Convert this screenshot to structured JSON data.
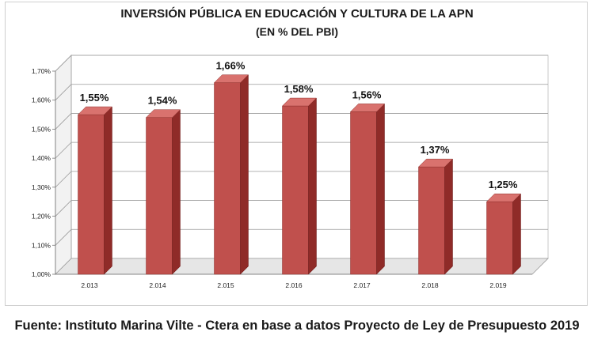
{
  "chart_data": {
    "type": "bar",
    "title": "INVERSIÓN PÚBLICA EN EDUCACIÓN Y CULTURA DE LA APN",
    "subtitle": "(EN % DEL PBI)",
    "categories": [
      "2.013",
      "2.014",
      "2.015",
      "2.016",
      "2.017",
      "2.018",
      "2.019"
    ],
    "values": [
      1.55,
      1.54,
      1.66,
      1.58,
      1.56,
      1.37,
      1.25
    ],
    "data_labels": [
      "1,55%",
      "1,54%",
      "1,66%",
      "1,58%",
      "1,56%",
      "1,37%",
      "1,25%"
    ],
    "yticks": [
      "1,00%",
      "1,10%",
      "1,20%",
      "1,30%",
      "1,40%",
      "1,50%",
      "1,60%",
      "1,70%"
    ],
    "ylim": [
      1.0,
      1.7
    ],
    "xlabel": "",
    "ylabel": "",
    "bar_color": "#c0504d",
    "grid": true,
    "legend": "none"
  },
  "source": "Fuente: Instituto Marina Vilte - Ctera en base a datos Proyecto de Ley de Presupuesto 2019"
}
